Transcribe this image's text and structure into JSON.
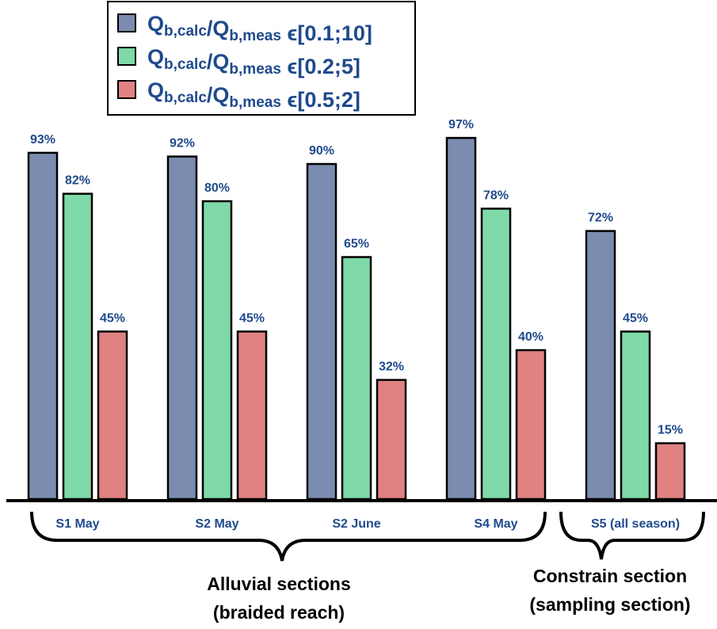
{
  "chart_data": {
    "type": "bar",
    "categories": [
      "S1 May",
      "S2 May",
      "S2 June",
      "S4 May",
      "S5 (all season)"
    ],
    "series": [
      {
        "name": "Qb,calc/Qb,meas ϵ[0.1;10]",
        "color": "#7b8cb0",
        "values": [
          93,
          92,
          90,
          97,
          72
        ],
        "value_labels": [
          "93%",
          "92%",
          "90%",
          "97%",
          "72%"
        ]
      },
      {
        "name": "Qb,calc/Qb,meas ϵ[0.2;5]",
        "color": "#7fd9a8",
        "values": [
          82,
          80,
          65,
          78,
          45
        ],
        "value_labels": [
          "82%",
          "80%",
          "65%",
          "78%",
          "45%"
        ]
      },
      {
        "name": "Qb,calc/Qb,meas ϵ[0.5;2]",
        "color": "#e08282",
        "values": [
          45,
          45,
          32,
          40,
          15
        ],
        "value_labels": [
          "45%",
          "45%",
          "32%",
          "40%",
          "15%"
        ]
      }
    ],
    "ylim": [
      0,
      100
    ],
    "group_labels": [
      [
        "Alluvial sections",
        "(braided reach)"
      ],
      [
        "Constrain section",
        "(sampling section)"
      ]
    ]
  }
}
